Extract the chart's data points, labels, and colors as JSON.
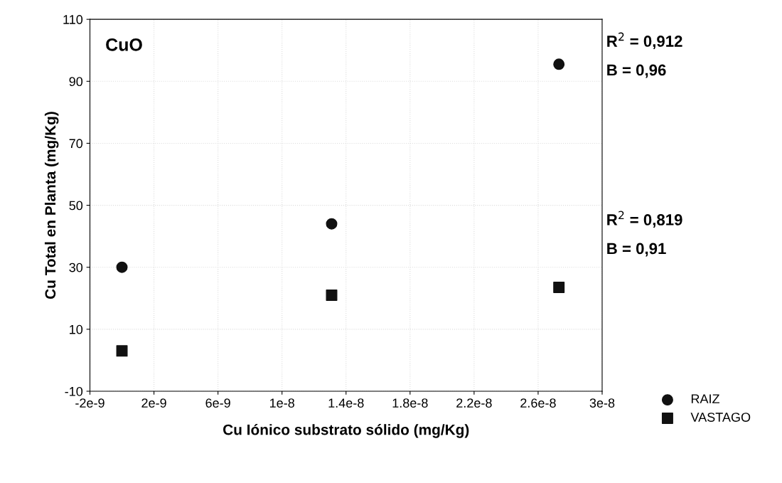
{
  "chart_data": {
    "type": "scatter",
    "title": "CuO",
    "xlabel": "Cu Iónico substrato sólido (mg/Kg)",
    "ylabel": "Cu Total en Planta (mg/Kg)",
    "x": [
      0,
      1.31e-08,
      2.73e-08
    ],
    "series": [
      {
        "name": "RAIZ",
        "color": "#111111",
        "marker": "circle",
        "values": [
          30,
          44,
          95.5
        ]
      },
      {
        "name": "VASTAGO",
        "color": "#111111",
        "marker": "square",
        "values": [
          3,
          21,
          23.5
        ]
      }
    ],
    "xlim": [
      -2e-09,
      3e-08
    ],
    "xticks": [
      {
        "value": -2e-09,
        "label": "-2e-9"
      },
      {
        "value": 2e-09,
        "label": "2e-9"
      },
      {
        "value": 6e-09,
        "label": "6e-9"
      },
      {
        "value": 1e-08,
        "label": "1e-8"
      },
      {
        "value": 1.4e-08,
        "label": "1.4e-8"
      },
      {
        "value": 1.8e-08,
        "label": "1.8e-8"
      },
      {
        "value": 2.2e-08,
        "label": "2.2e-8"
      },
      {
        "value": 2.6e-08,
        "label": "2.6e-8"
      },
      {
        "value": 3e-08,
        "label": "3e-8"
      }
    ],
    "ylim": [
      -10,
      110
    ],
    "yticks": [
      -10,
      10,
      30,
      50,
      70,
      90,
      110
    ],
    "annotations": [
      "R$^{2}$ = 0,912",
      "B = 0,96",
      "R$^{2}$ = 0,819",
      "B = 0,91"
    ],
    "grid": true,
    "legend": "bottom right"
  }
}
